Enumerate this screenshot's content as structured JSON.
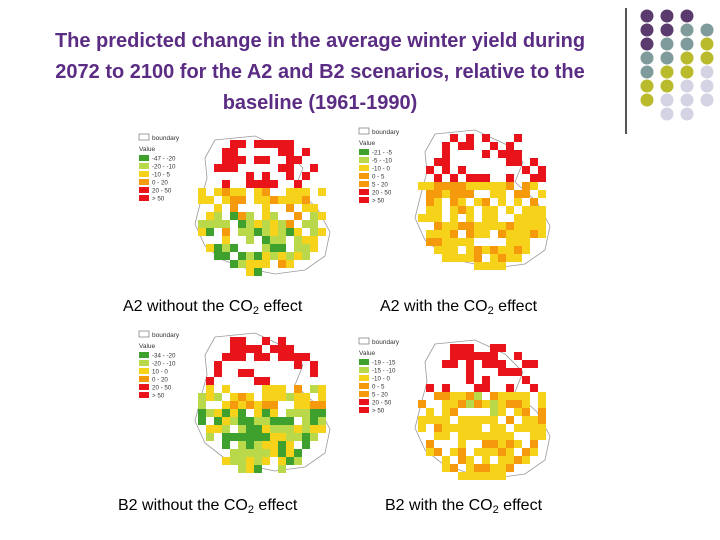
{
  "slide": {
    "title_line1": "The predicted change in the average winter yield during",
    "title_line2": "2072 to 2100 for the A2 and B2 scenarios, relative to the",
    "title_line3": "baseline (1961-1990)"
  },
  "colors": {
    "title": "#5b2c83",
    "dot_purple": "#5b3a6e",
    "dot_teal": "#7f9b9b",
    "dot_olive": "#b9bb2c",
    "dot_lavender": "#d3d3e3",
    "map_red": "#e8141a",
    "map_orange": "#f59a0c",
    "map_yellow": "#f7d21a",
    "map_lightgreen": "#b9d84a",
    "map_green": "#3ea12e"
  },
  "maps": [
    {
      "id": "a2-no-co2",
      "caption_prefix": "A2 without the CO",
      "caption_sub": "2",
      "caption_suffix": " effect",
      "legend_title": "boundary",
      "value_label": "Value",
      "legend": [
        "-47 - -20",
        "-20 - -10",
        "-10 - 5",
        "0 - 20",
        "20 - 50",
        "> 50"
      ]
    },
    {
      "id": "a2-with-co2",
      "caption_prefix": "A2 with the CO",
      "caption_sub": "2",
      "caption_suffix": " effect",
      "legend_title": "boundary",
      "value_label": "Value",
      "legend": [
        "-21 - -5",
        "-5 - -10",
        "-10 - 0",
        "0 - 5",
        "5 - 20",
        "20 - 50",
        "> 50"
      ]
    },
    {
      "id": "b2-no-co2",
      "caption_prefix": "B2 without the CO",
      "caption_sub": "2",
      "caption_suffix": " effect",
      "legend_title": "boundary",
      "value_label": "Value",
      "legend": [
        "-34 - -20",
        "-20 - -10",
        "10 - 0",
        "0 - 20",
        "20 - 50",
        "> 50"
      ]
    },
    {
      "id": "b2-with-co2",
      "caption_prefix": "B2 with the CO",
      "caption_sub": "2",
      "caption_suffix": " effect",
      "legend_title": "boundary",
      "value_label": "Value",
      "legend": [
        "-19 - -15",
        "-15 - -10",
        "-10 - 0",
        "0 - 5",
        "5 - 20",
        "20 - 50",
        "> 50"
      ]
    }
  ]
}
